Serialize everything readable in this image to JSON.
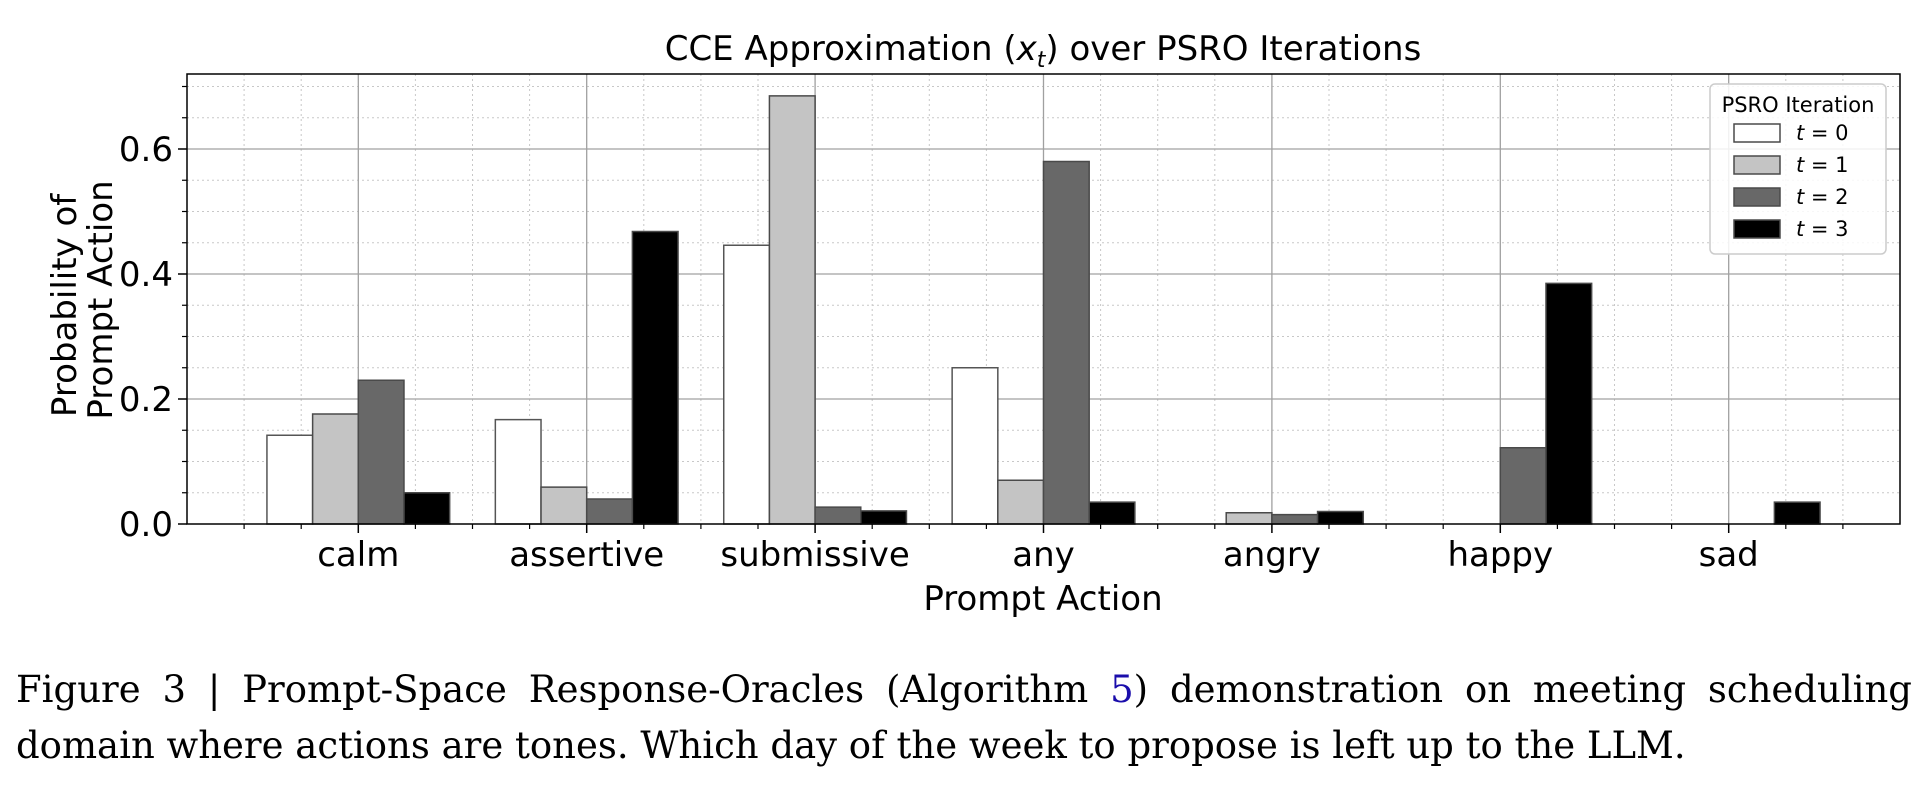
{
  "chart_data": {
    "type": "bar",
    "title": "CCE Approximation (x_t) over PSRO Iterations",
    "title_parts": {
      "before": "CCE Approximation (",
      "var": "x",
      "sub": "t",
      "after": ") over PSRO Iterations"
    },
    "xlabel": "Prompt Action",
    "ylabel": [
      "Probability of",
      "Prompt Action"
    ],
    "categories": [
      "calm",
      "assertive",
      "submissive",
      "any",
      "angry",
      "happy",
      "sad"
    ],
    "ylim": [
      0,
      0.72
    ],
    "yticks": [
      0.0,
      0.2,
      0.4,
      0.6
    ],
    "ytick_labels": [
      "0.0",
      "0.2",
      "0.4",
      "0.6"
    ],
    "grid": "major and minor",
    "legend_title": "PSRO Iteration",
    "legend_position": "top-right",
    "series": [
      {
        "name": "t = 0",
        "label_var": "t",
        "label_val": "0",
        "color": "#ffffff",
        "values": [
          0.142,
          0.167,
          0.446,
          0.25,
          0.0,
          0.0,
          0.0
        ]
      },
      {
        "name": "t = 1",
        "label_var": "t",
        "label_val": "1",
        "color": "#c4c4c4",
        "values": [
          0.176,
          0.059,
          0.685,
          0.07,
          0.018,
          0.0,
          0.0
        ]
      },
      {
        "name": "t = 2",
        "label_var": "t",
        "label_val": "2",
        "color": "#686868",
        "values": [
          0.23,
          0.04,
          0.027,
          0.58,
          0.015,
          0.122,
          0.0
        ]
      },
      {
        "name": "t = 3",
        "label_var": "t",
        "label_val": "3",
        "color": "#000000",
        "values": [
          0.05,
          0.468,
          0.021,
          0.035,
          0.02,
          0.385,
          0.035
        ]
      }
    ]
  },
  "caption": {
    "prefix": "Figure 3 | Prompt-Space Response-Oracles (Algorithm ",
    "ref": "5",
    "suffix": ") demonstration on meeting scheduling domain where actions are tones. Which day of the week to propose is left up to the LLM."
  }
}
